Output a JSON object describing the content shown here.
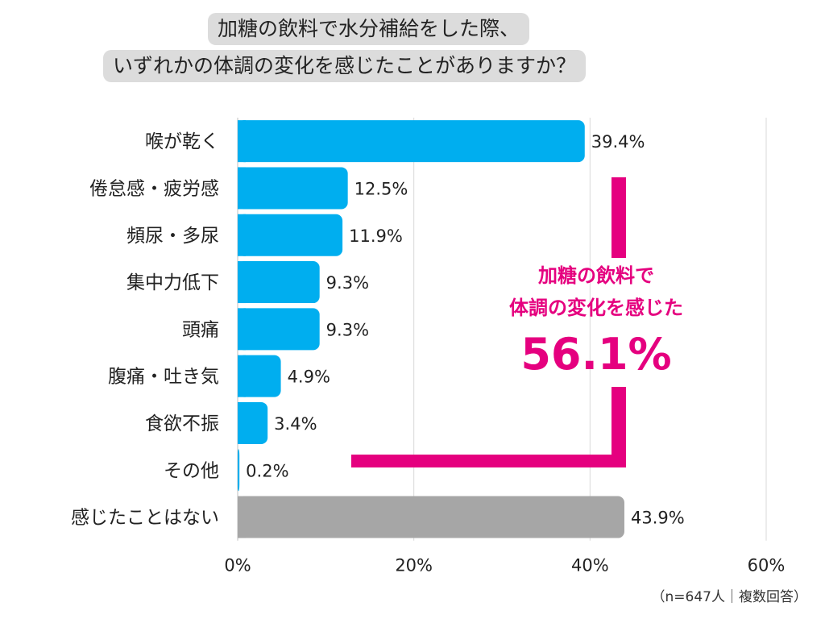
{
  "title_lines": [
    "加糖の飲料で水分補給をした際、",
    "いずれかの体調の変化を感じたことがありますか？"
  ],
  "callout": {
    "line1": "加糖の飲料で",
    "line2": "体調の変化を感じた",
    "value": "56.1%"
  },
  "note": "（n=647人｜複数回答）",
  "chart_data": {
    "type": "bar",
    "orientation": "horizontal",
    "categories": [
      "喉が乾く",
      "倦怠感・疲労感",
      "頻尿・多尿",
      "集中力低下",
      "頭痛",
      "腹痛・吐き気",
      "食欲不振",
      "その他",
      "感じたことはない"
    ],
    "values": [
      39.4,
      12.5,
      11.9,
      9.3,
      9.3,
      4.9,
      3.4,
      0.2,
      43.9
    ],
    "value_labels": [
      "39.4%",
      "12.5%",
      "11.9%",
      "9.3%",
      "9.3%",
      "4.9%",
      "3.4%",
      "0.2%",
      "43.9%"
    ],
    "xlim": [
      0,
      60
    ],
    "xticks": [
      0,
      20,
      40,
      60
    ],
    "xtick_labels": [
      "0%",
      "20%",
      "40%",
      "60%"
    ],
    "grid": true,
    "colors": {
      "bar": "#00aeef",
      "bar_none": "#a6a6a6",
      "bracket": "#e5007f",
      "grid": "#d9d9d9"
    }
  }
}
